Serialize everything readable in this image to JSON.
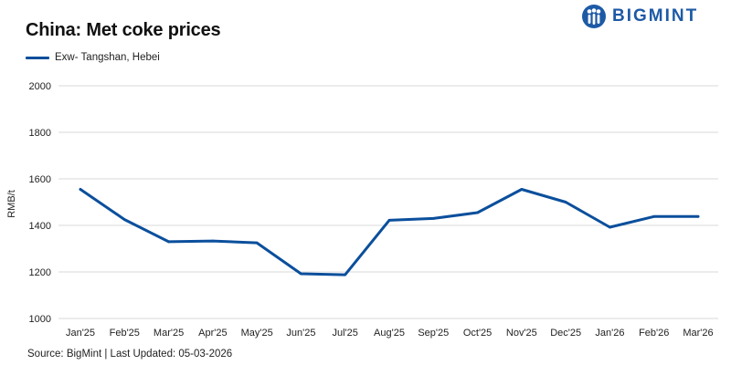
{
  "header": {
    "title": "China: Met coke prices",
    "logo_text": "BIGMINT",
    "logo_icon": "bigmint-logo-icon"
  },
  "footer": {
    "source": "Source: BigMint | Last Updated: 05-03-2026"
  },
  "colors": {
    "series": "#0b4f9c",
    "grid": "#d9d9d9",
    "brand": "#1d5aa6"
  },
  "chart_data": {
    "type": "line",
    "title": "China: Met coke prices",
    "xlabel": "",
    "ylabel": "RMB/t",
    "ylim": [
      1000,
      2000
    ],
    "yticks": [
      1000,
      1200,
      1400,
      1600,
      1800,
      2000
    ],
    "grid": true,
    "legend": "top-left",
    "categories": [
      "Jan'25",
      "Feb'25",
      "Mar'25",
      "Apr'25",
      "May'25",
      "Jun'25",
      "Jul'25",
      "Aug'25",
      "Sep'25",
      "Oct'25",
      "Nov'25",
      "Dec'25",
      "Jan'26",
      "Feb'26",
      "Mar'26"
    ],
    "series": [
      {
        "name": "Exw- Tangshan, Hebei",
        "color": "#0b4f9c",
        "values": [
          1555,
          1425,
          1330,
          1333,
          1325,
          1192,
          1188,
          1422,
          1430,
          1455,
          1555,
          1500,
          1392,
          1438,
          1438
        ]
      }
    ]
  }
}
